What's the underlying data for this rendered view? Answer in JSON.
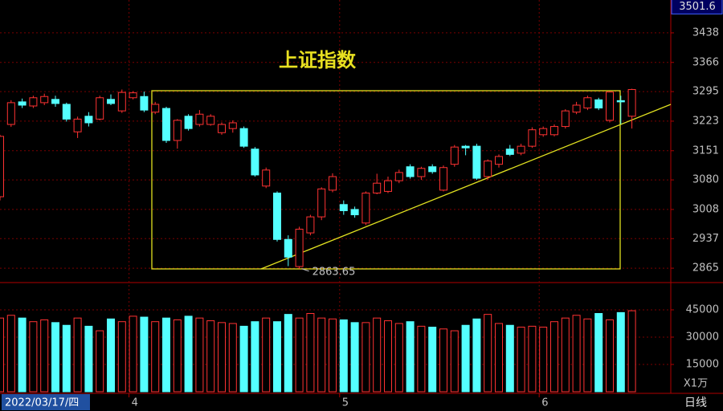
{
  "chart_data": {
    "type": "candlestick",
    "title": "上证指数",
    "categories": [
      "2022/03/17/四",
      null,
      null,
      null,
      null,
      null,
      null,
      null,
      null,
      null,
      null,
      null,
      "4",
      null,
      null,
      null,
      null,
      null,
      null,
      null,
      null,
      null,
      null,
      null,
      null,
      null,
      null,
      null,
      null,
      null,
      null,
      "5",
      null,
      null,
      null,
      null,
      null,
      null,
      null,
      null,
      null,
      null,
      null,
      null,
      null,
      null,
      null,
      null,
      null,
      "6",
      null,
      null,
      null,
      null,
      null,
      null,
      null,
      null
    ],
    "open": [
      3039,
      3215,
      3270,
      3260,
      3268,
      3276,
      3264,
      3197,
      3235,
      3228,
      3276,
      3248,
      3280,
      3283,
      3245,
      3254,
      3176,
      3235,
      3215,
      3215,
      3195,
      3205,
      3205,
      3155,
      3065,
      3048,
      2935,
      2869,
      2951,
      2990,
      3055,
      3020,
      3008,
      2975,
      3048,
      3052,
      3078,
      3112,
      3088,
      3112,
      3055,
      3118,
      3162,
      3162,
      3088,
      3118,
      3155,
      3145,
      3162,
      3190,
      3190,
      3210,
      3245,
      3255,
      3275,
      3225,
      3273,
      3235
    ],
    "high": [
      3190,
      3274,
      3278,
      3285,
      3290,
      3285,
      3268,
      3234,
      3245,
      3285,
      3288,
      3300,
      3296,
      3295,
      3270,
      3258,
      3228,
      3240,
      3250,
      3240,
      3220,
      3225,
      3210,
      3160,
      3110,
      3052,
      2945,
      2966,
      2995,
      3062,
      3096,
      3030,
      3015,
      3052,
      3095,
      3088,
      3105,
      3118,
      3112,
      3118,
      3115,
      3165,
      3165,
      3168,
      3130,
      3142,
      3165,
      3168,
      3208,
      3210,
      3215,
      3252,
      3270,
      3285,
      3280,
      3296,
      3285,
      3302
    ],
    "low": [
      3030,
      3209,
      3255,
      3255,
      3262,
      3258,
      3222,
      3182,
      3210,
      3225,
      3262,
      3243,
      3276,
      3245,
      3240,
      3170,
      3156,
      3200,
      3210,
      3212,
      3190,
      3195,
      3158,
      3088,
      3060,
      2930,
      2870,
      2863.65,
      2945,
      2982,
      3050,
      2995,
      2988,
      2970,
      3045,
      3048,
      3072,
      3083,
      3080,
      3095,
      3052,
      3112,
      3140,
      3080,
      3080,
      3110,
      3138,
      3140,
      3158,
      3185,
      3186,
      3205,
      3240,
      3250,
      3250,
      3220,
      3215,
      3205
    ],
    "close": [
      3186,
      3268,
      3262,
      3280,
      3283,
      3266,
      3228,
      3228,
      3219,
      3280,
      3266,
      3293,
      3292,
      3250,
      3264,
      3176,
      3225,
      3205,
      3240,
      3235,
      3215,
      3219,
      3162,
      3092,
      3104,
      2935,
      2892,
      2960,
      2990,
      3058,
      3088,
      3005,
      2995,
      3048,
      3072,
      3078,
      3098,
      3088,
      3108,
      3100,
      3110,
      3160,
      3158,
      3084,
      3126,
      3137,
      3142,
      3162,
      3202,
      3205,
      3210,
      3248,
      3262,
      3280,
      3255,
      3294,
      3270,
      3300
    ],
    "volume": [
      40500,
      42000,
      40500,
      38500,
      39500,
      38000,
      36500,
      40500,
      36000,
      33500,
      40000,
      38500,
      41500,
      41000,
      38500,
      40500,
      39500,
      41500,
      40500,
      39000,
      38000,
      37500,
      36000,
      38500,
      40500,
      38500,
      42500,
      40500,
      43000,
      40500,
      40000,
      39500,
      38000,
      38000,
      40500,
      39000,
      37500,
      38500,
      36000,
      35500,
      34500,
      33500,
      36500,
      40000,
      42500,
      37500,
      36500,
      35500,
      36000,
      35500,
      38500,
      40500,
      42000,
      40000,
      43000,
      39500,
      43500,
      44500
    ],
    "up_color": "#ff3232",
    "down_color": "#54ffff",
    "ylim": [
      2830,
      3518
    ],
    "yticks": [
      2865,
      2937,
      3008,
      3080,
      3151,
      3223,
      3295,
      3366,
      3438
    ],
    "cursor_price": 3501.6,
    "low_mark": 2863.65,
    "volume_ylim": [
      0,
      49400
    ],
    "volume_yticks": [
      15000,
      30000,
      45000
    ],
    "volume_unit": "X1万",
    "period_label": "日线",
    "grid": true
  }
}
